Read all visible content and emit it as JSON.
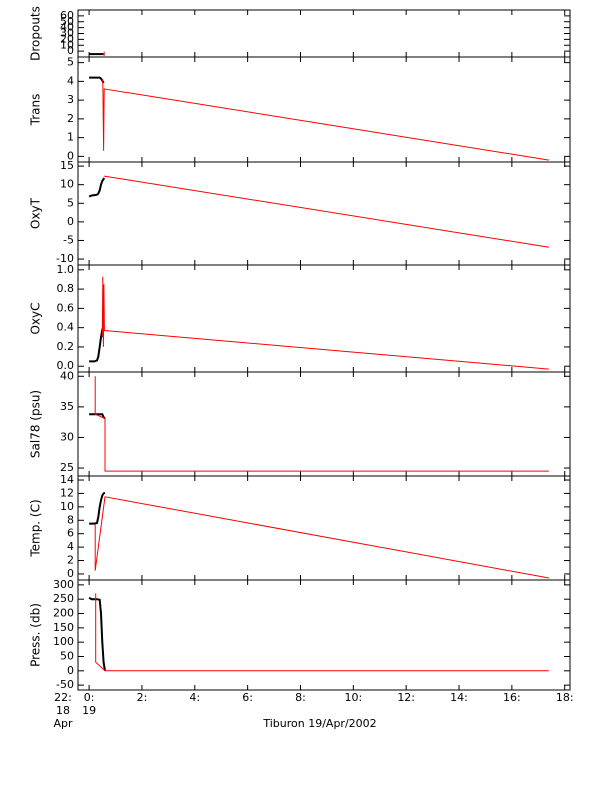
{
  "chart_data": [
    {
      "type": "line",
      "ylabel": "Dropouts",
      "ylim": [
        -10,
        70
      ],
      "yticks": [
        0,
        10,
        20,
        30,
        40,
        50,
        60
      ],
      "series": [
        {
          "color": "#000000",
          "x": [
            0,
            0.05,
            0.1,
            0.15,
            0.2,
            0.25,
            0.3,
            0.35,
            0.4,
            0.45,
            0.5,
            0.55
          ],
          "values": [
            -5,
            -5,
            -5,
            -5,
            -5,
            -5,
            -5,
            -5,
            -5,
            -5,
            -5,
            -5
          ]
        },
        {
          "color": "#ff0000",
          "x": [
            0.57,
            0.57
          ],
          "values": [
            -8,
            -1
          ]
        }
      ]
    },
    {
      "type": "line",
      "ylabel": "Trans",
      "ylim": [
        -0.3,
        5.3
      ],
      "yticks": [
        0,
        1,
        2,
        3,
        4,
        5
      ],
      "series": [
        {
          "color": "#000000",
          "x": [
            0,
            0.1,
            0.2,
            0.3,
            0.4,
            0.45,
            0.5,
            0.55
          ],
          "values": [
            4.2,
            4.2,
            4.2,
            4.2,
            4.2,
            4.15,
            4.05,
            3.9
          ]
        },
        {
          "color": "#ff0000",
          "x": [
            0.52,
            0.55,
            0.57,
            17.4
          ],
          "values": [
            4.1,
            0.3,
            3.6,
            -0.2
          ]
        }
      ]
    },
    {
      "type": "line",
      "ylabel": "OxyT",
      "ylim": [
        -11.6,
        16.1
      ],
      "yticks": [
        -10,
        -5,
        0,
        5,
        10,
        15
      ],
      "series": [
        {
          "color": "#000000",
          "x": [
            0,
            0.1,
            0.2,
            0.3,
            0.35,
            0.4,
            0.45,
            0.5,
            0.55,
            0.57
          ],
          "values": [
            6.8,
            7.1,
            7.2,
            7.3,
            7.6,
            8.5,
            10,
            11,
            11.5,
            11.8
          ]
        },
        {
          "color": "#ff0000",
          "x": [
            0.57,
            17.4
          ],
          "values": [
            12.3,
            -6.8
          ]
        }
      ]
    },
    {
      "type": "line",
      "ylabel": "OxyC",
      "ylim": [
        -0.06,
        1.05
      ],
      "yticks": [
        {
          "value": 0,
          "label": "0.0"
        },
        0.2,
        0.4,
        0.6,
        0.8,
        {
          "value": 1,
          "label": "1.0"
        }
      ],
      "series": [
        {
          "color": "#000000",
          "x": [
            0,
            0.1,
            0.2,
            0.3,
            0.35,
            0.4,
            0.45,
            0.5,
            0.55,
            0.57
          ],
          "values": [
            0.05,
            0.05,
            0.05,
            0.06,
            0.1,
            0.2,
            0.3,
            0.38,
            0.42,
            0.43
          ]
        },
        {
          "color": "#ff0000",
          "x": [
            0.5,
            0.52,
            0.54,
            0.56,
            0.58,
            17.4
          ],
          "values": [
            0.3,
            0.93,
            0.2,
            0.85,
            0.37,
            -0.03
          ]
        }
      ]
    },
    {
      "type": "line",
      "ylabel": "Sal78 (psu)",
      "ylim": [
        23.7,
        40.7
      ],
      "yticks": [
        25,
        30,
        35,
        40
      ],
      "series": [
        {
          "color": "#000000",
          "x": [
            0,
            0.1,
            0.2,
            0.3,
            0.4,
            0.5,
            0.55,
            0.6
          ],
          "values": [
            33.8,
            33.8,
            33.8,
            33.8,
            33.8,
            33.8,
            33.3,
            33.1
          ]
        },
        {
          "color": "#ff0000",
          "x": [
            0.23,
            0.23,
            0.6,
            0.6,
            17.4
          ],
          "values": [
            40,
            33.8,
            33.1,
            24.5,
            24.5
          ]
        }
      ]
    },
    {
      "type": "line",
      "ylabel": "Temp. (C)",
      "ylim": [
        -0.9,
        14.6
      ],
      "yticks": [
        0,
        2,
        4,
        6,
        8,
        10,
        12,
        14
      ],
      "series": [
        {
          "color": "#000000",
          "x": [
            0,
            0.1,
            0.2,
            0.3,
            0.35,
            0.4,
            0.45,
            0.5,
            0.55,
            0.6
          ],
          "values": [
            7.5,
            7.5,
            7.5,
            7.6,
            8.5,
            10,
            11,
            11.7,
            12,
            12.1
          ]
        },
        {
          "color": "#ff0000",
          "x": [
            0.23,
            0.23,
            0.6,
            17.4
          ],
          "values": [
            7.5,
            0.5,
            11.5,
            -0.6
          ]
        }
      ]
    },
    {
      "type": "line",
      "ylabel": "Press. (db)",
      "ylim": [
        -67,
        317
      ],
      "yticks": [
        -50,
        0,
        50,
        100,
        150,
        200,
        250,
        300
      ],
      "xlabel": "Tiburon 19/Apr/2002",
      "xlim": [
        -0.42,
        18.2
      ],
      "xticks": [
        {
          "value": -0.42,
          "label": "22:"
        },
        {
          "value": 0,
          "label": "0:"
        },
        {
          "value": 2,
          "label": "2:"
        },
        {
          "value": 4,
          "label": "4:"
        },
        {
          "value": 6,
          "label": "6:"
        },
        {
          "value": 8,
          "label": "8:"
        },
        {
          "value": 10,
          "label": "10:"
        },
        {
          "value": 12,
          "label": "12:"
        },
        {
          "value": 14,
          "label": "14:"
        },
        {
          "value": 16,
          "label": "16:"
        },
        {
          "value": 18,
          "label": "18:"
        }
      ],
      "day_labels": [
        {
          "value": -0.42,
          "label": "18"
        },
        {
          "value": 0,
          "label": "19"
        }
      ],
      "month_label": "Apr",
      "series": [
        {
          "color": "#000000",
          "x": [
            0,
            0.1,
            0.2,
            0.3,
            0.4,
            0.45,
            0.5,
            0.55,
            0.6
          ],
          "values": [
            255,
            250,
            250,
            250,
            248,
            200,
            100,
            30,
            0
          ]
        },
        {
          "color": "#ff0000",
          "x": [
            0.25,
            0.25,
            0.6,
            17.4
          ],
          "values": [
            270,
            30,
            0,
            0
          ]
        }
      ]
    }
  ]
}
